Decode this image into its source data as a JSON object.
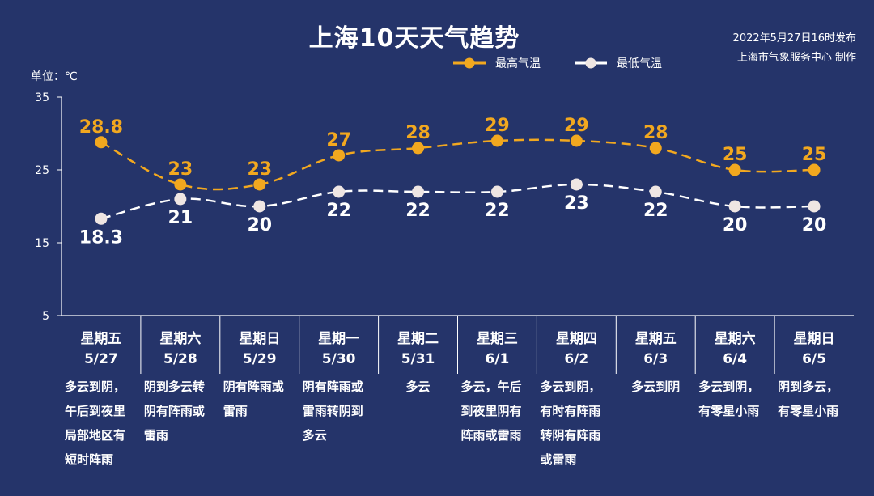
{
  "title": "上海10天天气趋势",
  "publish_line1": "2022年5月27日16时发布",
  "publish_line2": "上海市气象服务中心 制作",
  "unit_label": "单位：℃",
  "colors": {
    "background": "#25346a",
    "high": "#f2a81f",
    "low": "#ffffff",
    "low_marker": "#efe6e3"
  },
  "chart_data": {
    "type": "line",
    "categories": [
      "5/27",
      "5/28",
      "5/29",
      "5/30",
      "5/31",
      "6/1",
      "6/2",
      "6/3",
      "6/4",
      "6/5"
    ],
    "weekdays": [
      "星期五",
      "星期六",
      "星期日",
      "星期一",
      "星期二",
      "星期三",
      "星期四",
      "星期五",
      "星期六",
      "星期日"
    ],
    "series": [
      {
        "name": "最高气温",
        "values": [
          28.8,
          23,
          23,
          27,
          28,
          29,
          29,
          28,
          25,
          25
        ],
        "labels": [
          "28.8",
          "23",
          "23",
          "27",
          "28",
          "29",
          "29",
          "28",
          "25",
          "25"
        ]
      },
      {
        "name": "最低气温",
        "values": [
          18.3,
          21,
          20,
          22,
          22,
          22,
          23,
          22,
          20,
          20
        ],
        "labels": [
          "18.3",
          "21",
          "20",
          "22",
          "22",
          "22",
          "23",
          "22",
          "20",
          "20"
        ]
      }
    ],
    "yticks": [
      "35",
      "25",
      "15",
      "5"
    ],
    "ylim": [
      5,
      35
    ],
    "grid": false,
    "legend_position": "top"
  },
  "descriptions": [
    "多云到阴，午后到夜里局部地区有短时阵雨",
    "阴到多云转阴有阵雨或雷雨",
    "阴有阵雨或雷雨",
    "阴有阵雨或雷雨转阴到多云",
    "多云",
    "多云，午后到夜里阴有阵雨或雷雨",
    "多云到阴，有时有阵雨转阴有阵雨或雷雨",
    "多云到阴",
    "多云到阴，有零星小雨",
    "阴到多云，有零星小雨"
  ]
}
